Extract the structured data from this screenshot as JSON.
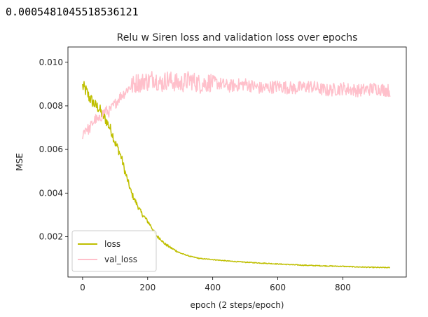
{
  "output": {
    "printed_value": "0.0005481045518536121"
  },
  "chart_data": {
    "type": "line",
    "title": "Relu w Siren loss and validation loss over epochs",
    "xlabel": "epoch (2 steps/epoch)",
    "ylabel": "MSE",
    "xlim": [
      -45,
      995
    ],
    "ylim": [
      0.00015,
      0.0107
    ],
    "x_ticks": [
      {
        "value": 0,
        "label": "0"
      },
      {
        "value": 200,
        "label": "200"
      },
      {
        "value": 400,
        "label": "400"
      },
      {
        "value": 600,
        "label": "600"
      },
      {
        "value": 800,
        "label": "800"
      }
    ],
    "y_ticks": [
      {
        "value": 0.002,
        "label": "0.002"
      },
      {
        "value": 0.004,
        "label": "0.004"
      },
      {
        "value": 0.006,
        "label": "0.006"
      },
      {
        "value": 0.008,
        "label": "0.008"
      },
      {
        "value": 0.01,
        "label": "0.010"
      }
    ],
    "grid": false,
    "legend_position": "lower-left",
    "series": [
      {
        "name": "loss",
        "color": "#bfbf00",
        "x": [
          0,
          10,
          20,
          30,
          40,
          50,
          60,
          70,
          80,
          90,
          100,
          110,
          120,
          130,
          140,
          150,
          160,
          170,
          180,
          190,
          200,
          210,
          220,
          230,
          240,
          250,
          270,
          300,
          330,
          360,
          400,
          450,
          500,
          550,
          600,
          650,
          700,
          750,
          800,
          850,
          900,
          945
        ],
        "y": [
          0.0089,
          0.0087,
          0.0084,
          0.0082,
          0.008,
          0.0079,
          0.0076,
          0.0074,
          0.0071,
          0.0068,
          0.0063,
          0.006,
          0.0056,
          0.005,
          0.0045,
          0.004,
          0.0037,
          0.0034,
          0.0031,
          0.0029,
          0.0027,
          0.0025,
          0.0022,
          0.002,
          0.0019,
          0.0017,
          0.0015,
          0.00125,
          0.0011,
          0.001,
          0.00095,
          0.00088,
          0.00083,
          0.00079,
          0.00075,
          0.00071,
          0.00068,
          0.00066,
          0.00064,
          0.00061,
          0.00059,
          0.00058
        ]
      },
      {
        "name": "val_loss",
        "color": "#ffc0cb",
        "x": [
          0,
          10,
          20,
          30,
          40,
          50,
          60,
          70,
          80,
          90,
          100,
          110,
          120,
          130,
          140,
          150,
          160,
          170,
          180,
          190,
          200,
          220,
          240,
          260,
          280,
          300,
          330,
          360,
          400,
          450,
          500,
          550,
          600,
          650,
          700,
          750,
          800,
          850,
          900,
          945
        ],
        "y": [
          0.0067,
          0.007,
          0.0069,
          0.0072,
          0.0074,
          0.0073,
          0.0076,
          0.0078,
          0.0077,
          0.0079,
          0.0081,
          0.0083,
          0.0085,
          0.0086,
          0.0088,
          0.0089,
          0.009,
          0.0091,
          0.009,
          0.0092,
          0.0091,
          0.0093,
          0.009,
          0.0092,
          0.0091,
          0.009,
          0.0092,
          0.009,
          0.0091,
          0.0089,
          0.009,
          0.0088,
          0.0089,
          0.0088,
          0.0089,
          0.0087,
          0.0088,
          0.0087,
          0.0088,
          0.0087
        ]
      }
    ]
  }
}
